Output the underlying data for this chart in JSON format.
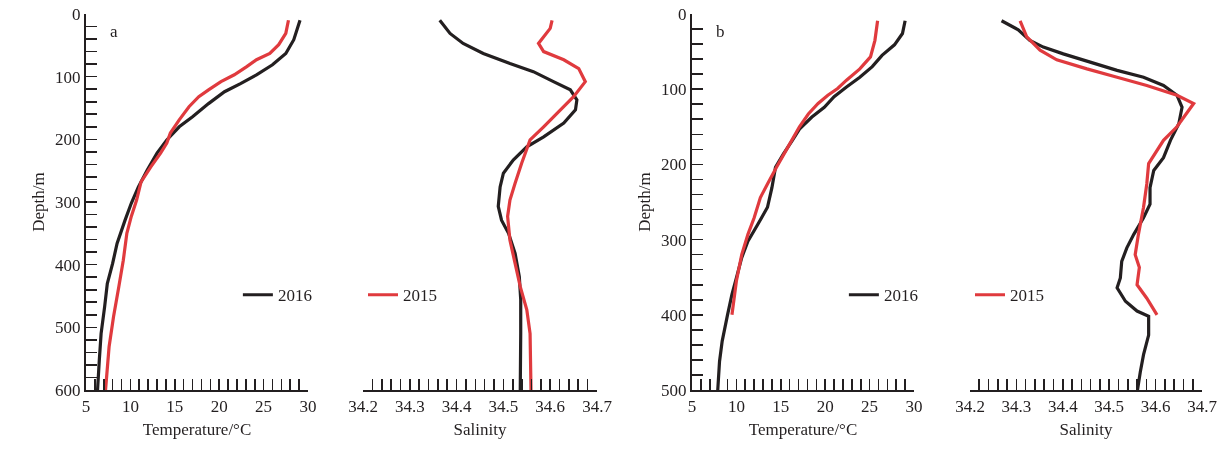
{
  "chart_data": [
    {
      "type": "line",
      "xlabel": "Temperature/°C",
      "ylabel": "Depth/m",
      "annotations": [
        "a"
      ],
      "legend": "bottom right",
      "marker": "none",
      "line_style": "solid",
      "grid": false,
      "xlim": [
        5,
        30
      ],
      "xticks": [
        5,
        {
          "value": 6,
          "label": null
        },
        {
          "value": 7,
          "label": null
        },
        {
          "value": 8,
          "label": null
        },
        {
          "value": 9,
          "label": null
        },
        10,
        {
          "value": 11,
          "label": null
        },
        {
          "value": 12,
          "label": null
        },
        {
          "value": 13,
          "label": null
        },
        {
          "value": 14,
          "label": null
        },
        15,
        {
          "value": 16,
          "label": null
        },
        {
          "value": 17,
          "label": null
        },
        {
          "value": 18,
          "label": null
        },
        {
          "value": 19,
          "label": null
        },
        20,
        {
          "value": 21,
          "label": null
        },
        {
          "value": 22,
          "label": null
        },
        {
          "value": 23,
          "label": null
        },
        {
          "value": 24,
          "label": null
        },
        25,
        {
          "value": 26,
          "label": null
        },
        {
          "value": 27,
          "label": null
        },
        {
          "value": 28,
          "label": null
        },
        {
          "value": 29,
          "label": null
        },
        30
      ],
      "ylim": [
        600,
        0
      ],
      "yticks": [
        0,
        {
          "value": 20,
          "label": null
        },
        {
          "value": 40,
          "label": null
        },
        {
          "value": 60,
          "label": null
        },
        {
          "value": 80,
          "label": null
        },
        100,
        {
          "value": 120,
          "label": null
        },
        {
          "value": 140,
          "label": null
        },
        {
          "value": 160,
          "label": null
        },
        {
          "value": 180,
          "label": null
        },
        200,
        {
          "value": 220,
          "label": null
        },
        {
          "value": 240,
          "label": null
        },
        {
          "value": 260,
          "label": null
        },
        {
          "value": 280,
          "label": null
        },
        300,
        {
          "value": 320,
          "label": null
        },
        {
          "value": 340,
          "label": null
        },
        {
          "value": 360,
          "label": null
        },
        {
          "value": 380,
          "label": null
        },
        400,
        {
          "value": 420,
          "label": null
        },
        {
          "value": 440,
          "label": null
        },
        {
          "value": 460,
          "label": null
        },
        {
          "value": 480,
          "label": null
        },
        500,
        {
          "value": 520,
          "label": null
        },
        {
          "value": 540,
          "label": null
        },
        {
          "value": 560,
          "label": null
        },
        {
          "value": 580,
          "label": null
        },
        600
      ],
      "series": [
        {
          "name": "2016",
          "color": "#231f20",
          "x": [
            29.1,
            28.4,
            27.5,
            26.0,
            24.2,
            22.4,
            20.6,
            18.8,
            17.0,
            15.5,
            14.1,
            13.0,
            11.9,
            10.9,
            10.1,
            9.4,
            8.5,
            8.0,
            7.4,
            7.1,
            6.7,
            6.5,
            6.3
          ],
          "values": [
            10,
            41,
            63,
            81,
            97,
            111,
            124,
            143,
            164,
            180,
            201,
            222,
            249,
            276,
            302,
            329,
            366,
            398,
            430,
            467,
            510,
            552,
            600
          ]
        },
        {
          "color": "#e03a3e",
          "x": [
            27.8,
            27.5,
            26.7,
            25.7,
            24.2,
            23.1,
            21.7,
            20.2,
            18.8,
            17.7,
            16.6,
            15.5,
            14.5,
            14.1,
            13.4,
            12.3,
            11.2,
            10.7,
            10.1,
            9.6,
            9.2,
            8.7,
            8.1,
            7.6,
            7.2
          ],
          "values": [
            10,
            31,
            49,
            63,
            73,
            84,
            97,
            108,
            121,
            132,
            148,
            169,
            190,
            206,
            222,
            244,
            268,
            297,
            323,
            350,
            393,
            435,
            483,
            531,
            600
          ]
        }
      ]
    },
    {
      "type": "line",
      "xlabel": "Salinity",
      "legend": "bottom left",
      "marker": "none",
      "line_style": "solid",
      "grid": false,
      "tick_labels": "x",
      "xlim": [
        34.2,
        34.7
      ],
      "xticks": [
        34.2,
        {
          "value": 34.22,
          "label": null
        },
        {
          "value": 34.24,
          "label": null
        },
        {
          "value": 34.26,
          "label": null
        },
        {
          "value": 34.28,
          "label": null
        },
        34.3,
        {
          "value": 34.32,
          "label": null
        },
        {
          "value": 34.34,
          "label": null
        },
        {
          "value": 34.36,
          "label": null
        },
        {
          "value": 34.38,
          "label": null
        },
        34.4,
        {
          "value": 34.42,
          "label": null
        },
        {
          "value": 34.44,
          "label": null
        },
        {
          "value": 34.46,
          "label": null
        },
        {
          "value": 34.48,
          "label": null
        },
        34.5,
        {
          "value": 34.52,
          "label": null
        },
        {
          "value": 34.54,
          "label": null
        },
        {
          "value": 34.56,
          "label": null
        },
        {
          "value": 34.58,
          "label": null
        },
        34.6,
        {
          "value": 34.62,
          "label": null
        },
        {
          "value": 34.64,
          "label": null
        },
        {
          "value": 34.66,
          "label": null
        },
        {
          "value": 34.68,
          "label": null
        },
        34.7
      ],
      "ylim": [
        600,
        0
      ],
      "series": [
        {
          "color": "#231f20",
          "x": [
            34.364,
            34.386,
            34.414,
            34.457,
            34.514,
            34.564,
            34.607,
            34.643,
            34.657,
            34.654,
            34.629,
            34.586,
            34.55,
            34.521,
            34.5,
            34.493,
            34.489,
            34.496,
            34.511,
            34.525,
            34.534,
            34.537,
            34.537,
            34.536
          ],
          "values": [
            10,
            31,
            47,
            63,
            79,
            92,
            108,
            121,
            137,
            153,
            174,
            196,
            212,
            233,
            254,
            276,
            307,
            329,
            350,
            382,
            419,
            456,
            510,
            600
          ]
        },
        {
          "name": "2015",
          "color": "#e03a3e",
          "x": [
            34.604,
            34.6,
            34.575,
            34.586,
            34.629,
            34.661,
            34.675,
            34.65,
            34.614,
            34.586,
            34.557,
            34.539,
            34.525,
            34.514,
            34.509,
            34.514,
            34.525,
            34.536,
            34.55,
            34.557,
            34.559
          ],
          "values": [
            10,
            23,
            47,
            60,
            73,
            87,
            108,
            132,
            159,
            180,
            201,
            238,
            270,
            297,
            323,
            361,
            398,
            435,
            472,
            510,
            600
          ]
        }
      ]
    },
    {
      "type": "line",
      "xlabel": "Temperature/°C",
      "ylabel": "Depth/m",
      "annotations": [
        "b"
      ],
      "legend": "bottom right",
      "marker": "none",
      "line_style": "solid",
      "grid": false,
      "xlim": [
        5,
        30
      ],
      "xticks": [
        5,
        {
          "value": 6,
          "label": null
        },
        {
          "value": 7,
          "label": null
        },
        {
          "value": 8,
          "label": null
        },
        {
          "value": 9,
          "label": null
        },
        10,
        {
          "value": 11,
          "label": null
        },
        {
          "value": 12,
          "label": null
        },
        {
          "value": 13,
          "label": null
        },
        {
          "value": 14,
          "label": null
        },
        15,
        {
          "value": 16,
          "label": null
        },
        {
          "value": 17,
          "label": null
        },
        {
          "value": 18,
          "label": null
        },
        {
          "value": 19,
          "label": null
        },
        20,
        {
          "value": 21,
          "label": null
        },
        {
          "value": 22,
          "label": null
        },
        {
          "value": 23,
          "label": null
        },
        {
          "value": 24,
          "label": null
        },
        25,
        {
          "value": 26,
          "label": null
        },
        {
          "value": 27,
          "label": null
        },
        {
          "value": 28,
          "label": null
        },
        {
          "value": 29,
          "label": null
        },
        30
      ],
      "ylim": [
        500,
        0
      ],
      "yticks": [
        0,
        {
          "value": 20,
          "label": null
        },
        {
          "value": 40,
          "label": null
        },
        {
          "value": 60,
          "label": null
        },
        {
          "value": 80,
          "label": null
        },
        100,
        {
          "value": 120,
          "label": null
        },
        {
          "value": 140,
          "label": null
        },
        {
          "value": 160,
          "label": null
        },
        {
          "value": 180,
          "label": null
        },
        200,
        {
          "value": 220,
          "label": null
        },
        {
          "value": 240,
          "label": null
        },
        {
          "value": 260,
          "label": null
        },
        {
          "value": 280,
          "label": null
        },
        300,
        {
          "value": 320,
          "label": null
        },
        {
          "value": 340,
          "label": null
        },
        {
          "value": 360,
          "label": null
        },
        {
          "value": 380,
          "label": null
        },
        400,
        {
          "value": 420,
          "label": null
        },
        {
          "value": 440,
          "label": null
        },
        {
          "value": 460,
          "label": null
        },
        {
          "value": 480,
          "label": null
        },
        500
      ],
      "series": [
        {
          "name": "2016",
          "color": "#231f20",
          "x": [
            29.0,
            28.7,
            27.8,
            26.4,
            25.3,
            23.9,
            22.4,
            21.0,
            19.9,
            18.5,
            17.1,
            16.3,
            15.3,
            14.4,
            14.0,
            13.5,
            12.4,
            11.3,
            10.6,
            10.0,
            9.5,
            9.0,
            8.4,
            8.1,
            7.9
          ],
          "values": [
            9,
            26,
            41,
            55,
            70,
            84,
            97,
            110,
            124,
            137,
            153,
            168,
            186,
            204,
            231,
            257,
            280,
            302,
            324,
            351,
            373,
            400,
            435,
            462,
            500
          ]
        },
        {
          "color": "#e03a3e",
          "x": [
            25.9,
            25.6,
            25.1,
            23.9,
            22.4,
            21.4,
            20.3,
            19.2,
            18.1,
            17.1,
            15.8,
            14.5,
            13.5,
            12.7,
            12.0,
            11.3,
            10.6,
            10.0,
            9.5
          ],
          "values": [
            9,
            35,
            57,
            73,
            88,
            99,
            108,
            119,
            133,
            150,
            177,
            204,
            226,
            244,
            271,
            293,
            320,
            355,
            400
          ]
        }
      ]
    },
    {
      "type": "line",
      "xlabel": "Salinity",
      "legend": "bottom left",
      "marker": "none",
      "line_style": "solid",
      "grid": false,
      "tick_labels": "x",
      "xlim": [
        34.2,
        34.7
      ],
      "xticks": [
        34.2,
        {
          "value": 34.22,
          "label": null
        },
        {
          "value": 34.24,
          "label": null
        },
        {
          "value": 34.26,
          "label": null
        },
        {
          "value": 34.28,
          "label": null
        },
        34.3,
        {
          "value": 34.32,
          "label": null
        },
        {
          "value": 34.34,
          "label": null
        },
        {
          "value": 34.36,
          "label": null
        },
        {
          "value": 34.38,
          "label": null
        },
        34.4,
        {
          "value": 34.42,
          "label": null
        },
        {
          "value": 34.44,
          "label": null
        },
        {
          "value": 34.46,
          "label": null
        },
        {
          "value": 34.48,
          "label": null
        },
        34.5,
        {
          "value": 34.52,
          "label": null
        },
        {
          "value": 34.54,
          "label": null
        },
        {
          "value": 34.56,
          "label": null
        },
        {
          "value": 34.58,
          "label": null
        },
        34.6,
        {
          "value": 34.62,
          "label": null
        },
        {
          "value": 34.64,
          "label": null
        },
        {
          "value": 34.66,
          "label": null
        },
        {
          "value": 34.68,
          "label": null
        },
        34.7
      ],
      "ylim": [
        500,
        0
      ],
      "series": [
        {
          "color": "#231f20",
          "x": [
            34.268,
            34.304,
            34.329,
            34.358,
            34.401,
            34.459,
            34.517,
            34.574,
            34.617,
            34.646,
            34.657,
            34.65,
            34.632,
            34.617,
            34.596,
            34.588,
            34.588,
            34.574,
            34.553,
            34.538,
            34.527,
            34.524,
            34.517,
            34.535,
            34.56,
            34.585,
            34.585,
            34.574,
            34.567,
            34.561
          ],
          "values": [
            9,
            21,
            35,
            44,
            53,
            64,
            75,
            84,
            95,
            108,
            124,
            146,
            168,
            191,
            208,
            231,
            253,
            271,
            293,
            311,
            329,
            351,
            364,
            382,
            395,
            402,
            427,
            453,
            476,
            500
          ]
        },
        {
          "name": "2015",
          "color": "#e03a3e",
          "x": [
            34.308,
            34.322,
            34.351,
            34.387,
            34.452,
            34.517,
            34.581,
            34.646,
            34.682,
            34.646,
            34.617,
            34.585,
            34.581,
            34.574,
            34.563,
            34.556,
            34.565,
            34.56,
            34.581,
            34.603
          ],
          "values": [
            9,
            30,
            48,
            61,
            73,
            84,
            95,
            108,
            119,
            150,
            168,
            199,
            226,
            257,
            293,
            320,
            337,
            360,
            378,
            400
          ]
        }
      ]
    }
  ]
}
